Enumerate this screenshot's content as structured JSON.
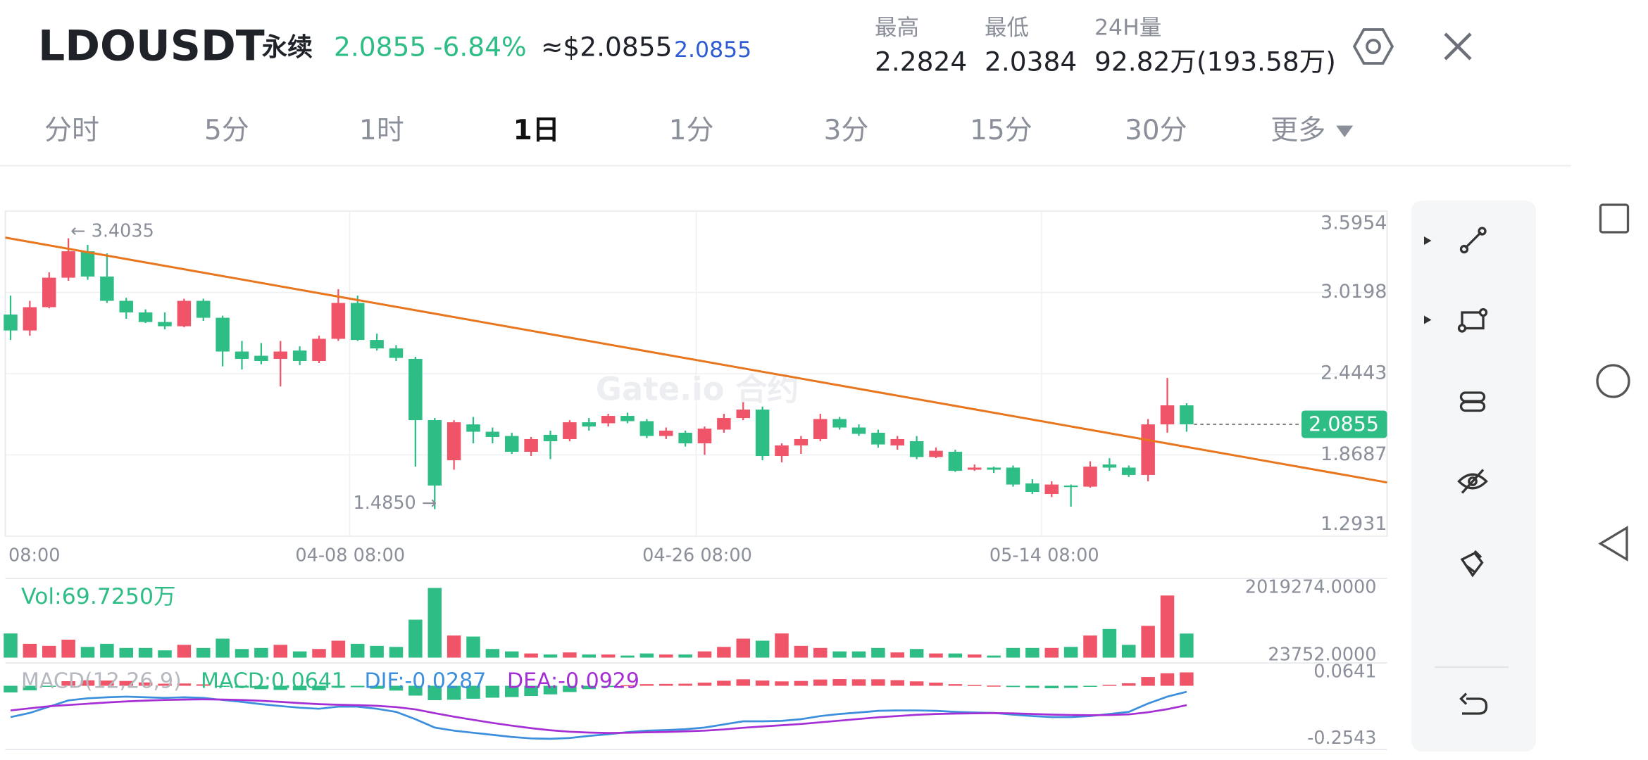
{
  "header": {
    "symbol": "LDOUSDT",
    "contract": "永续",
    "price": "2.0855",
    "change": "-6.84%",
    "usd_price": "≈$2.0855",
    "mark_price": "2.0855",
    "stats": [
      {
        "label": "最高",
        "value": "2.2824"
      },
      {
        "label": "最低",
        "value": "2.0384"
      },
      {
        "label": "24H量",
        "value": "92.82万(193.58万)"
      }
    ]
  },
  "tabs": [
    "分时",
    "5分",
    "1时",
    "1日",
    "1分",
    "3分",
    "15分",
    "30分",
    "更多"
  ],
  "chart_data": [
    {
      "type": "candlestick",
      "watermark": "Gate.io 合约",
      "up_color": "#ef5468",
      "down_color": "#2ebd85",
      "grid": true,
      "categories": [
        "08:00",
        null,
        null,
        null,
        null,
        null,
        null,
        null,
        null,
        null,
        null,
        null,
        null,
        null,
        null,
        null,
        null,
        null,
        "04-08 08:00",
        null,
        null,
        null,
        null,
        null,
        null,
        null,
        null,
        null,
        null,
        null,
        null,
        null,
        null,
        null,
        null,
        null,
        "04-26 08:00",
        null,
        null,
        null,
        null,
        null,
        null,
        null,
        null,
        null,
        null,
        null,
        null,
        null,
        null,
        null,
        null,
        null,
        "05-14 08:00",
        null,
        null,
        null,
        null,
        null,
        null,
        null
      ],
      "open": [
        2.863,
        2.75,
        2.915,
        3.124,
        3.311,
        3.132,
        2.96,
        2.878,
        2.81,
        2.78,
        2.96,
        2.84,
        2.601,
        2.571,
        2.549,
        2.608,
        2.534,
        2.691,
        2.945,
        2.683,
        2.623,
        2.549,
        2.115,
        1.831,
        2.085,
        2.033,
        2.003,
        1.891,
        2.011,
        1.981,
        2.1,
        2.093,
        2.145,
        2.108,
        2.003,
        2.026,
        1.951,
        2.048,
        2.13,
        2.19,
        1.861,
        1.936,
        1.981,
        2.123,
        2.063,
        2.026,
        1.936,
        1.966,
        1.854,
        1.891,
        1.764,
        1.779,
        1.779,
        1.667,
        1.592,
        1.652,
        1.644,
        1.801,
        1.779,
        1.727,
        2.085,
        2.22
      ],
      "high": [
        2.997,
        2.96,
        3.162,
        3.4035,
        3.356,
        3.296,
        2.982,
        2.9,
        2.878,
        2.975,
        2.975,
        2.855,
        2.676,
        2.661,
        2.676,
        2.638,
        2.713,
        3.042,
        2.997,
        2.728,
        2.646,
        2.564,
        2.13,
        2.115,
        2.138,
        2.063,
        2.026,
        1.996,
        2.041,
        2.115,
        2.13,
        2.16,
        2.168,
        2.123,
        2.063,
        2.041,
        2.07,
        2.16,
        2.242,
        2.212,
        1.951,
        2.003,
        2.16,
        2.138,
        2.085,
        2.048,
        2.003,
        2.003,
        1.921,
        1.906,
        1.801,
        1.786,
        1.794,
        1.697,
        1.682,
        1.659,
        1.824,
        1.846,
        1.794,
        2.123,
        2.414,
        2.235
      ],
      "low": [
        2.683,
        2.713,
        2.907,
        3.102,
        3.109,
        2.945,
        2.833,
        2.803,
        2.758,
        2.773,
        2.818,
        2.496,
        2.474,
        2.511,
        2.354,
        2.504,
        2.519,
        2.676,
        2.676,
        2.608,
        2.534,
        1.786,
        1.485,
        1.764,
        1.951,
        1.951,
        1.876,
        1.861,
        1.839,
        1.966,
        2.041,
        2.07,
        2.093,
        1.988,
        1.981,
        1.928,
        1.869,
        2.026,
        2.115,
        1.831,
        1.816,
        1.876,
        1.966,
        2.048,
        2.003,
        1.921,
        1.906,
        1.839,
        1.846,
        1.749,
        1.756,
        1.741,
        1.644,
        1.592,
        1.57,
        1.502,
        1.637,
        1.756,
        1.712,
        1.682,
        2.026,
        2.033
      ],
      "close": [
        2.75,
        2.915,
        3.124,
        3.311,
        3.132,
        2.96,
        2.878,
        2.81,
        2.78,
        2.96,
        2.84,
        2.601,
        2.549,
        2.534,
        2.601,
        2.534,
        2.691,
        2.945,
        2.683,
        2.623,
        2.556,
        2.115,
        1.652,
        2.1,
        2.033,
        1.996,
        1.891,
        1.981,
        1.966,
        2.1,
        2.07,
        2.145,
        2.108,
        2.003,
        2.041,
        1.951,
        2.055,
        2.13,
        2.19,
        1.861,
        1.936,
        1.981,
        2.123,
        2.063,
        2.018,
        1.943,
        1.981,
        1.854,
        1.898,
        1.756,
        1.779,
        1.764,
        1.659,
        1.607,
        1.659,
        1.644,
        1.786,
        1.779,
        1.727,
        2.085,
        2.22,
        2.0855
      ],
      "ylim": [
        1.2931,
        3.5954
      ],
      "yticks": [
        3.5954,
        3.0198,
        2.4443,
        1.8687,
        1.2931
      ],
      "high_label": "← 3.4035",
      "low_label": "1.4850 →",
      "trendline": {
        "color": "#e8761e",
        "values": [
          3.408,
          1.674
        ]
      }
    },
    {
      "type": "volume",
      "title": "Vol:69.7250万",
      "title_color": "#2ebd85",
      "values": [
        700000,
        400000,
        340000,
        520000,
        310000,
        400000,
        280000,
        280000,
        210000,
        370000,
        280000,
        550000,
        250000,
        280000,
        370000,
        180000,
        250000,
        490000,
        400000,
        340000,
        310000,
        1100000,
        2019274,
        640000,
        610000,
        250000,
        180000,
        120000,
        90000,
        150000,
        90000,
        90000,
        60000,
        120000,
        90000,
        90000,
        180000,
        310000,
        550000,
        490000,
        700000,
        340000,
        280000,
        180000,
        180000,
        280000,
        150000,
        250000,
        120000,
        120000,
        90000,
        60000,
        280000,
        280000,
        280000,
        310000,
        640000,
        830000,
        370000,
        920000,
        1800000,
        697250
      ],
      "ylim": [
        0,
        2019274
      ],
      "yticks": [
        {
          "value": 2019274,
          "label": "2019274.0000"
        },
        {
          "value": 23752,
          "label": "23752.0000"
        }
      ]
    },
    {
      "type": "macd",
      "title": "MACD(12,26,9)",
      "up_color": "#ef5468",
      "down_color": "#2ebd85",
      "ylim": [
        -0.2543,
        0.0641
      ],
      "yticks": [
        0.0641,
        -0.2543
      ],
      "series": [
        {
          "name": "MACD:0.0641",
          "color": "#2ebd85",
          "values": [
            -0.032,
            -0.022,
            -0.002,
            0.022,
            0.026,
            0.025,
            0.023,
            0.016,
            0.01,
            0.011,
            0.007,
            -0.002,
            -0.009,
            -0.016,
            -0.02,
            -0.022,
            -0.022,
            -0.009,
            -0.007,
            -0.014,
            -0.023,
            -0.047,
            -0.069,
            -0.067,
            -0.062,
            -0.057,
            -0.054,
            -0.049,
            -0.041,
            -0.03,
            -0.016,
            -0.006,
            0.003,
            0.008,
            0.009,
            0.01,
            0.015,
            0.024,
            0.031,
            0.025,
            0.021,
            0.023,
            0.03,
            0.032,
            0.031,
            0.031,
            0.027,
            0.021,
            0.015,
            0.008,
            0.004,
            0.001,
            -0.006,
            -0.01,
            -0.012,
            -0.01,
            -0.004,
            0.005,
            0.012,
            0.042,
            0.06,
            0.0641
          ]
        },
        {
          "name": "DIF:-0.0287",
          "color": "#3c8fdc",
          "values": [
            -0.15,
            -0.13,
            -0.1,
            -0.07,
            -0.06,
            -0.055,
            -0.052,
            -0.055,
            -0.058,
            -0.055,
            -0.058,
            -0.068,
            -0.077,
            -0.088,
            -0.097,
            -0.105,
            -0.11,
            -0.1,
            -0.1,
            -0.11,
            -0.125,
            -0.16,
            -0.2,
            -0.215,
            -0.225,
            -0.235,
            -0.245,
            -0.252,
            -0.254,
            -0.25,
            -0.24,
            -0.232,
            -0.222,
            -0.215,
            -0.212,
            -0.208,
            -0.2,
            -0.185,
            -0.17,
            -0.17,
            -0.168,
            -0.16,
            -0.145,
            -0.135,
            -0.128,
            -0.12,
            -0.118,
            -0.118,
            -0.12,
            -0.125,
            -0.128,
            -0.13,
            -0.138,
            -0.145,
            -0.15,
            -0.15,
            -0.145,
            -0.135,
            -0.125,
            -0.085,
            -0.052,
            -0.0287
          ]
        },
        {
          "name": "DEA:-0.0929",
          "color": "#a52fd4",
          "values": [
            -0.118,
            -0.108,
            -0.098,
            -0.092,
            -0.086,
            -0.08,
            -0.075,
            -0.071,
            -0.068,
            -0.066,
            -0.065,
            -0.066,
            -0.068,
            -0.072,
            -0.077,
            -0.083,
            -0.088,
            -0.091,
            -0.093,
            -0.096,
            -0.102,
            -0.113,
            -0.131,
            -0.148,
            -0.163,
            -0.178,
            -0.191,
            -0.203,
            -0.213,
            -0.22,
            -0.224,
            -0.226,
            -0.225,
            -0.223,
            -0.221,
            -0.218,
            -0.215,
            -0.209,
            -0.201,
            -0.195,
            -0.189,
            -0.183,
            -0.175,
            -0.167,
            -0.159,
            -0.151,
            -0.145,
            -0.139,
            -0.135,
            -0.133,
            -0.132,
            -0.131,
            -0.132,
            -0.135,
            -0.138,
            -0.14,
            -0.141,
            -0.14,
            -0.137,
            -0.127,
            -0.112,
            -0.0929
          ]
        }
      ]
    }
  ]
}
